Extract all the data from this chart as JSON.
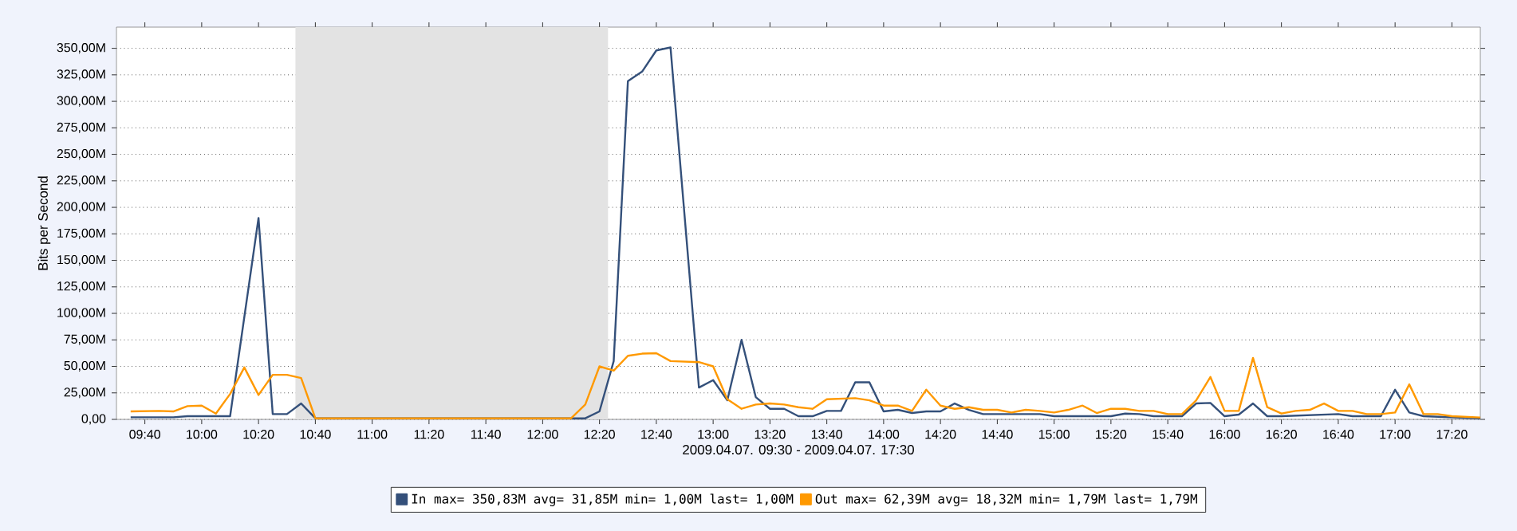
{
  "chart_data": {
    "type": "line",
    "xlabel": "2009.04.07. 09:30 - 2009.04.07. 17:30",
    "ylabel": "Bits per Second",
    "xlim": [
      9.5,
      17.5
    ],
    "xticks": [
      {
        "value": 9.6667,
        "label": "09:40"
      },
      {
        "value": 10,
        "label": "10:00"
      },
      {
        "value": 10.3333,
        "label": "10:20"
      },
      {
        "value": 10.6667,
        "label": "10:40"
      },
      {
        "value": 11,
        "label": "11:00"
      },
      {
        "value": 11.3333,
        "label": "11:20"
      },
      {
        "value": 11.6667,
        "label": "11:40"
      },
      {
        "value": 12,
        "label": "12:00"
      },
      {
        "value": 12.3333,
        "label": "12:20"
      },
      {
        "value": 12.6667,
        "label": "12:40"
      },
      {
        "value": 13,
        "label": "13:00"
      },
      {
        "value": 13.3333,
        "label": "13:20"
      },
      {
        "value": 13.6667,
        "label": "13:40"
      },
      {
        "value": 14,
        "label": "14:00"
      },
      {
        "value": 14.3333,
        "label": "14:20"
      },
      {
        "value": 14.6667,
        "label": "14:40"
      },
      {
        "value": 15,
        "label": "15:00"
      },
      {
        "value": 15.3333,
        "label": "15:20"
      },
      {
        "value": 15.6667,
        "label": "15:40"
      },
      {
        "value": 16,
        "label": "16:00"
      },
      {
        "value": 16.3333,
        "label": "16:20"
      },
      {
        "value": 16.6667,
        "label": "16:40"
      },
      {
        "value": 17,
        "label": "17:00"
      },
      {
        "value": 17.3333,
        "label": "17:20"
      }
    ],
    "ylim": [
      0,
      370
    ],
    "yticks": [
      {
        "value": 0,
        "label": "0,00"
      },
      {
        "value": 25,
        "label": "25,00M"
      },
      {
        "value": 50,
        "label": "50,00M"
      },
      {
        "value": 75,
        "label": "75,00M"
      },
      {
        "value": 100,
        "label": "100,00M"
      },
      {
        "value": 125,
        "label": "125,00M"
      },
      {
        "value": 150,
        "label": "150,00M"
      },
      {
        "value": 175,
        "label": "175,00M"
      },
      {
        "value": 200,
        "label": "200,00M"
      },
      {
        "value": 225,
        "label": "225,00M"
      },
      {
        "value": 250,
        "label": "250,00M"
      },
      {
        "value": 275,
        "label": "275,00M"
      },
      {
        "value": 300,
        "label": "300,00M"
      },
      {
        "value": 325,
        "label": "325,00M"
      },
      {
        "value": 350,
        "label": "350,00M"
      }
    ],
    "grid": "y",
    "legend": "bottom",
    "marker": "none",
    "line_style": "solid",
    "bands": [
      {
        "axis": "x",
        "from": 10.55,
        "to": 12.3833,
        "color": "#e3e3e3"
      }
    ],
    "series": [
      {
        "name": "In  max= 350,83M avg= 31,85M min= 1,00M last= 1,00M",
        "color": "#34507a",
        "x": [
          9.5833,
          9.8333,
          9.9167,
          10.0833,
          10.1667,
          10.3333,
          10.4167,
          10.5,
          10.5833,
          10.6667,
          12.25,
          12.3333,
          12.4167,
          12.5,
          12.5833,
          12.6667,
          12.75,
          12.9167,
          13,
          13.0833,
          13.1667,
          13.25,
          13.3333,
          13.4167,
          13.5,
          13.5833,
          13.6667,
          13.75,
          13.8333,
          13.9167,
          14,
          14.0833,
          14.1667,
          14.25,
          14.3333,
          14.4167,
          14.5,
          14.5833,
          14.9167,
          15,
          15.3333,
          15.4167,
          15.5,
          15.5833,
          15.75,
          15.8333,
          15.9167,
          16,
          16.0833,
          16.1667,
          16.25,
          16.3333,
          16.6667,
          16.75,
          16.9167,
          17,
          17.0833,
          17.1667,
          17.5
        ],
        "values": [
          2,
          2,
          3,
          3,
          3,
          190,
          5,
          5,
          15,
          1,
          1,
          7.5,
          55,
          319,
          328,
          348,
          350.8,
          30,
          37,
          18,
          75,
          21,
          10,
          10,
          3,
          3,
          8,
          8,
          35,
          35,
          7.5,
          9,
          6,
          7.5,
          7.5,
          15,
          9,
          5,
          5,
          3,
          3,
          5.5,
          5,
          3,
          3,
          15,
          15.5,
          3,
          4.5,
          15,
          3,
          3,
          5,
          3,
          3,
          28,
          6.5,
          3,
          1
        ]
      },
      {
        "name": "Out max=  62,39M avg= 18,32M min= 1,79M last= 1,79M",
        "color": "#ff9900",
        "x": [
          9.5833,
          9.75,
          9.8333,
          9.9167,
          10,
          10.0833,
          10.1667,
          10.25,
          10.3333,
          10.4167,
          10.5,
          10.5833,
          10.6667,
          12.1667,
          12.25,
          12.3333,
          12.4167,
          12.5,
          12.5833,
          12.6667,
          12.75,
          12.9167,
          13,
          13.0833,
          13.1667,
          13.25,
          13.3333,
          13.4167,
          13.5,
          13.5833,
          13.6667,
          13.8333,
          13.9167,
          14,
          14.0833,
          14.1667,
          14.25,
          14.3333,
          14.4167,
          14.5,
          14.5833,
          14.6667,
          14.75,
          14.8333,
          14.9167,
          15,
          15.0833,
          15.1667,
          15.25,
          15.3333,
          15.4167,
          15.5,
          15.5833,
          15.6667,
          15.75,
          15.8333,
          15.9167,
          16,
          16.0833,
          16.1667,
          16.25,
          16.3333,
          16.4167,
          16.5,
          16.5833,
          16.6667,
          16.75,
          16.8333,
          16.9167,
          17,
          17.0833,
          17.1667,
          17.25,
          17.3333,
          17.5
        ],
        "values": [
          7.5,
          8,
          7.5,
          12.5,
          13,
          5.5,
          24,
          49,
          23,
          42,
          42,
          39,
          1,
          1,
          14,
          50,
          46,
          60,
          62,
          62.4,
          55,
          54,
          50,
          19,
          10,
          14,
          15,
          14,
          11.5,
          10,
          19,
          20,
          18,
          13,
          13,
          8,
          28,
          13,
          10,
          11.5,
          9,
          9,
          6.5,
          9,
          8,
          6.5,
          9,
          13,
          6,
          10,
          10,
          8,
          8,
          5,
          5,
          18,
          40,
          8,
          8,
          58,
          11.5,
          5.5,
          8,
          9,
          15,
          8,
          8,
          5,
          5,
          6.5,
          33,
          5,
          5,
          3,
          1.79
        ]
      }
    ]
  }
}
